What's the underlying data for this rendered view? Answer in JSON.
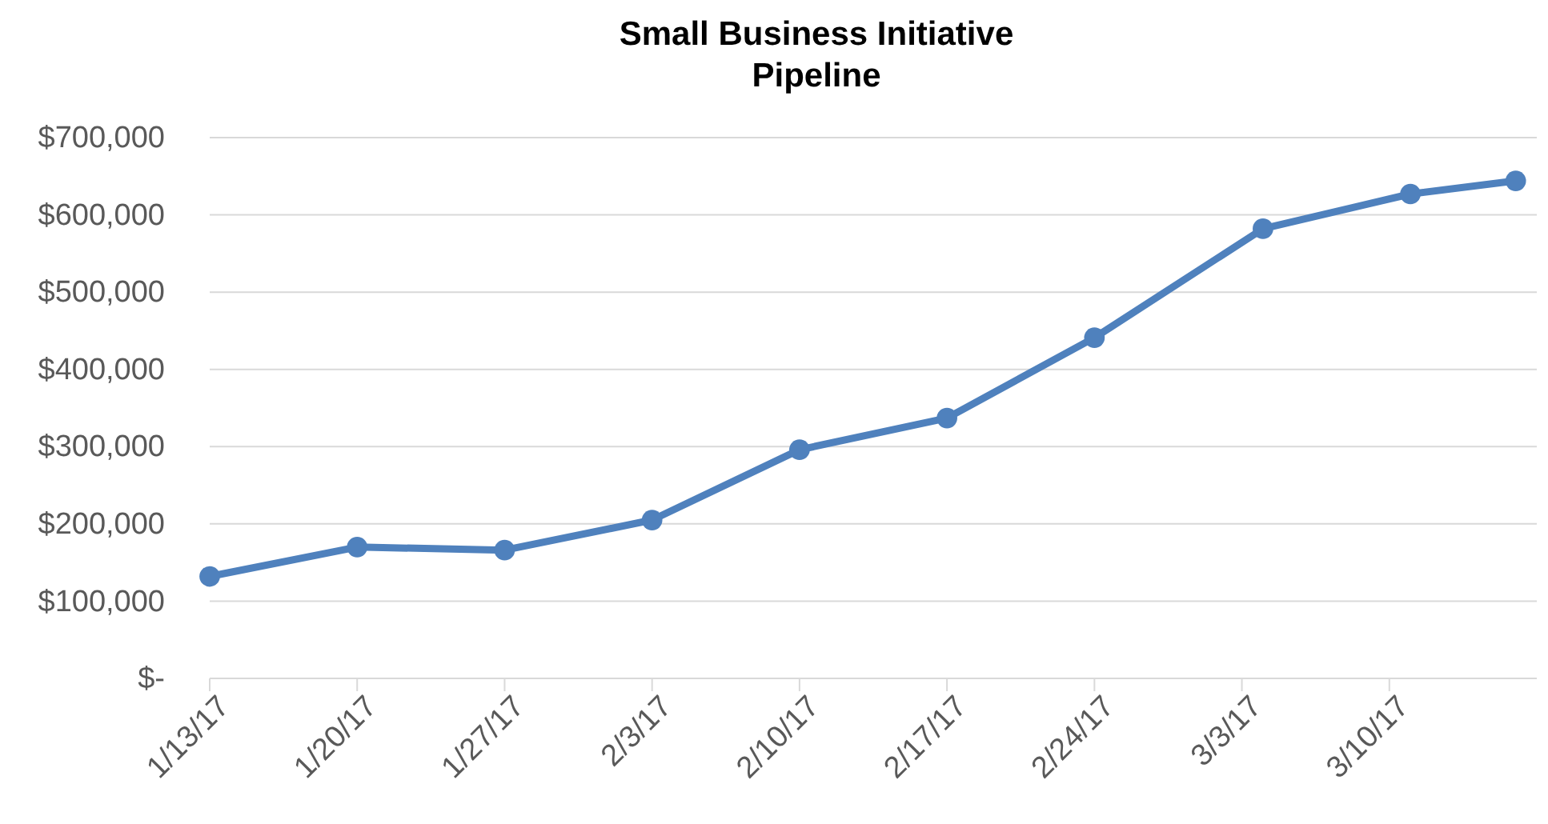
{
  "chart_data": {
    "type": "line",
    "title": "Small Business Initiative\nPipeline",
    "x": [
      "--01-13",
      "--01-20",
      "--01-27",
      "--02-03",
      "--02-10",
      "--02-17",
      "--02-24",
      "--03-04",
      "--03-11",
      "--03-16"
    ],
    "series": [
      {
        "color": "#4f81bd",
        "values": [
          132000,
          170000,
          166000,
          205000,
          296000,
          337000,
          441000,
          582000,
          627000,
          644000
        ]
      }
    ],
    "xlim": [
      "--01-13",
      "--03-17"
    ],
    "xticks": [
      {
        "value": "--01-13",
        "label": "1/13/17"
      },
      {
        "value": "--01-20",
        "label": "1/20/17"
      },
      {
        "value": "--01-27",
        "label": "1/27/17"
      },
      {
        "value": "--02-03",
        "label": "2/3/17"
      },
      {
        "value": "--02-10",
        "label": "2/10/17"
      },
      {
        "value": "--02-17",
        "label": "2/17/17"
      },
      {
        "value": "--02-24",
        "label": "2/24/17"
      },
      {
        "value": "--03-03",
        "label": "3/3/17"
      },
      {
        "value": "--03-10",
        "label": "3/10/17"
      }
    ],
    "ylim": [
      0,
      700000
    ],
    "yticks": [
      {
        "value": 0,
        "label": "$-"
      },
      {
        "value": 100000,
        "label": "$100,000"
      },
      {
        "value": 200000,
        "label": "$200,000"
      },
      {
        "value": 300000,
        "label": "$300,000"
      },
      {
        "value": 400000,
        "label": "$400,000"
      },
      {
        "value": 500000,
        "label": "$500,000"
      },
      {
        "value": 600000,
        "label": "$600,000"
      },
      {
        "value": 700000,
        "label": "$700,000"
      }
    ],
    "grid": "y",
    "marker": "circle",
    "line_style": "solid"
  }
}
